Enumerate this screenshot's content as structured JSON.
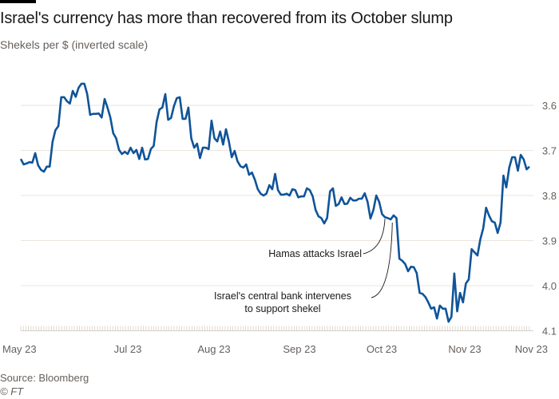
{
  "title": "Israel's currency has more than recovered from its October slump",
  "subtitle": "Shekels per $ (inverted scale)",
  "source": "Source: Bloomberg",
  "credit": "© FT",
  "colors": {
    "line": "#0f5499",
    "grid": "#ebe4dc",
    "text": "#66605c"
  },
  "chart_data": {
    "type": "line",
    "title": "Israel's currency has more than recovered from its October slump",
    "ylabel": "Shekels per $ (inverted scale)",
    "y_inverted": true,
    "ylim": [
      3.5,
      4.1
    ],
    "y_ticks": [
      "3.6",
      "3.7",
      "3.8",
      "3.9",
      "4.0",
      "4.1"
    ],
    "x_ticks": [
      "May 23",
      "Jul 23",
      "Aug 23",
      "Sep 23",
      "Oct 23",
      "Nov 23",
      "Nov 23"
    ],
    "grid": true,
    "values": [
      3.719,
      3.731,
      3.729,
      3.726,
      3.727,
      3.706,
      3.733,
      3.743,
      3.747,
      3.736,
      3.736,
      3.681,
      3.655,
      3.646,
      3.582,
      3.582,
      3.591,
      3.596,
      3.568,
      3.581,
      3.561,
      3.552,
      3.552,
      3.575,
      3.621,
      3.619,
      3.619,
      3.618,
      3.627,
      3.586,
      3.605,
      3.627,
      3.662,
      3.673,
      3.699,
      3.708,
      3.703,
      3.708,
      3.694,
      3.706,
      3.699,
      3.719,
      3.694,
      3.72,
      3.719,
      3.697,
      3.69,
      3.637,
      3.609,
      3.605,
      3.575,
      3.632,
      3.628,
      3.602,
      3.584,
      3.582,
      3.63,
      3.63,
      3.605,
      3.673,
      3.694,
      3.685,
      3.717,
      3.694,
      3.694,
      3.697,
      3.634,
      3.673,
      3.68,
      3.658,
      3.687,
      3.653,
      3.68,
      3.715,
      3.701,
      3.724,
      3.735,
      3.738,
      3.731,
      3.754,
      3.749,
      3.765,
      3.786,
      3.796,
      3.8,
      3.796,
      3.777,
      3.786,
      3.752,
      3.788,
      3.798,
      3.798,
      3.796,
      3.8,
      3.786,
      3.788,
      3.804,
      3.802,
      3.802,
      3.784,
      3.788,
      3.802,
      3.832,
      3.846,
      3.85,
      3.862,
      3.85,
      3.791,
      3.784,
      3.823,
      3.819,
      3.804,
      3.819,
      3.818,
      3.805,
      3.811,
      3.811,
      3.807,
      3.807,
      3.795,
      3.814,
      3.851,
      3.832,
      3.8,
      3.814,
      3.841,
      3.848,
      3.85,
      3.853,
      3.844,
      3.85,
      3.94,
      3.945,
      3.952,
      3.968,
      3.958,
      3.959,
      3.972,
      4.016,
      4.018,
      4.025,
      4.037,
      4.051,
      4.048,
      4.073,
      4.044,
      4.051,
      4.051,
      4.08,
      4.069,
      3.973,
      4.057,
      4.016,
      4.037,
      3.995,
      3.986,
      3.919,
      3.926,
      3.933,
      3.897,
      3.873,
      3.827,
      3.844,
      3.857,
      3.86,
      3.883,
      3.86,
      3.756,
      3.782,
      3.738,
      3.715,
      3.715,
      3.745,
      3.71,
      3.72,
      3.742,
      3.736
    ],
    "annotations": [
      {
        "lines": [
          "Hamas attacks Israel"
        ],
        "point_index": 126
      },
      {
        "lines": [
          "Israel's central bank intervenes",
          "to support shekel"
        ],
        "point_index": 128
      }
    ]
  }
}
